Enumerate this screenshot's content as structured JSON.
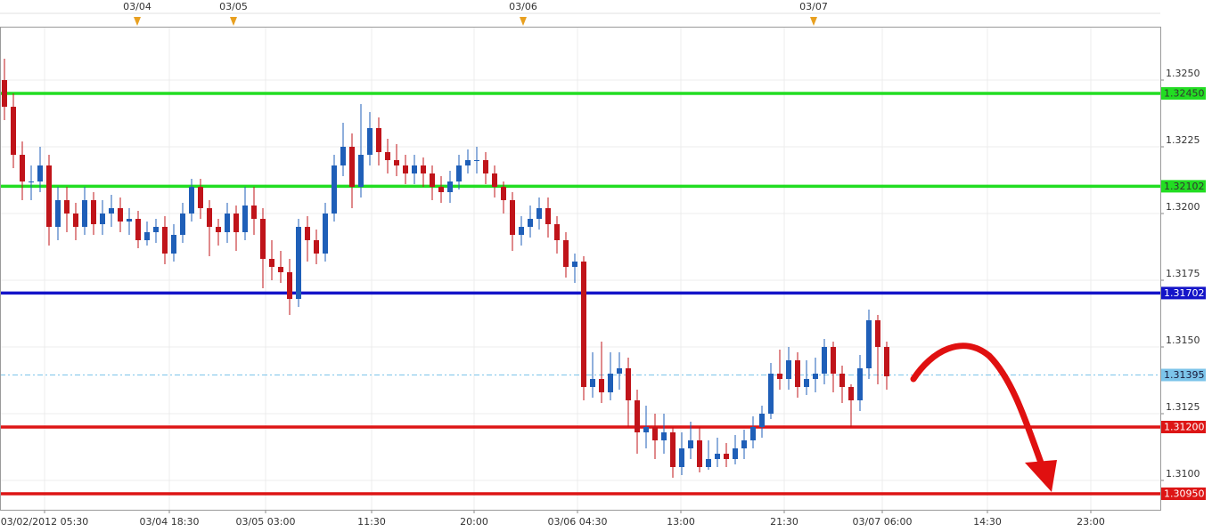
{
  "chart_data": {
    "type": "candlestick",
    "up_color": "#1f5fb8",
    "down_color": "#c0141a",
    "xlim": [
      -0.5,
      129.7
    ],
    "ylim": [
      1.3089,
      1.327
    ],
    "grid": true,
    "yticks": [
      {
        "value": 1.31,
        "label": "1.3100"
      },
      1.3125,
      {
        "value": 1.315,
        "label": "1.3150"
      },
      1.3175,
      {
        "value": 1.32,
        "label": "1.3200"
      },
      1.3225,
      {
        "value": 1.325,
        "label": "1.3250"
      }
    ],
    "xticks": [
      {
        "value": 4.5,
        "label": "03/02/2012 05:30"
      },
      {
        "value": 18.5,
        "label": "03/04 18:30"
      },
      {
        "value": 29.3,
        "label": "03/05 03:00"
      },
      {
        "value": 41.2,
        "label": "11:30"
      },
      {
        "value": 52.7,
        "label": "20:00"
      },
      {
        "value": 64.3,
        "label": "03/06 04:30"
      },
      {
        "value": 75.9,
        "label": "13:00"
      },
      {
        "value": 87.5,
        "label": "21:30"
      },
      {
        "value": 98.5,
        "label": "03/07 06:00"
      },
      {
        "value": 110.3,
        "label": "14:30"
      },
      {
        "value": 121.9,
        "label": "23:00"
      }
    ],
    "day_markers": [
      {
        "value": 14.9,
        "label": "03/04"
      },
      {
        "value": 25.7,
        "label": "03/05"
      },
      {
        "value": 58.2,
        "label": "03/06"
      },
      {
        "value": 90.8,
        "label": "03/07"
      }
    ],
    "levels": [
      {
        "value": 1.3245,
        "label": "1.32450",
        "color": "#22dd22",
        "text_color": "#333333",
        "dashed": false
      },
      {
        "value": 1.32102,
        "label": "1.32102",
        "color": "#22dd22",
        "text_color": "#333333",
        "dashed": false
      },
      {
        "value": 1.31702,
        "label": "1.31702",
        "color": "#1414c8",
        "text_color": "#ffffff",
        "dashed": false
      },
      {
        "value": 1.31395,
        "label": "1.31395",
        "color": "#7cc4ea",
        "text_color": "#1a1a3a",
        "dashed": true
      },
      {
        "value": 1.312,
        "label": "1.31200",
        "color": "#dd1515",
        "text_color": "#ffffff",
        "dashed": false
      },
      {
        "value": 1.3095,
        "label": "1.30950",
        "color": "#dd1515",
        "text_color": "#ffffff",
        "dashed": false
      }
    ],
    "open": [
      1.325,
      1.324,
      1.3222,
      1.3212,
      1.3212,
      1.3218,
      1.3195,
      1.3205,
      1.32,
      1.3195,
      1.3205,
      1.3196,
      1.32,
      1.3202,
      1.3197,
      1.3198,
      1.319,
      1.3193,
      1.3195,
      1.3185,
      1.3192,
      1.32,
      1.321,
      1.3202,
      1.3195,
      1.3193,
      1.32,
      1.3193,
      1.3203,
      1.3198,
      1.3183,
      1.318,
      1.3178,
      1.3168,
      1.3195,
      1.319,
      1.3185,
      1.32,
      1.3218,
      1.3225,
      1.321,
      1.3222,
      1.3232,
      1.3223,
      1.322,
      1.3218,
      1.3215,
      1.3218,
      1.3215,
      1.321,
      1.3208,
      1.3212,
      1.3218,
      1.322,
      1.322,
      1.3215,
      1.321,
      1.3205,
      1.3192,
      1.3195,
      1.3198,
      1.3202,
      1.3196,
      1.319,
      1.318,
      1.3182,
      1.3135,
      1.3138,
      1.3133,
      1.314,
      1.3142,
      1.313,
      1.3118,
      1.312,
      1.3115,
      1.3118,
      1.3105,
      1.3112,
      1.3115,
      1.3105,
      1.3108,
      1.311,
      1.3108,
      1.3112,
      1.3115,
      1.312,
      1.3125,
      1.314,
      1.3138,
      1.3145,
      1.3135,
      1.3138,
      1.314,
      1.315,
      1.314,
      1.3135,
      1.313,
      1.3142,
      1.316,
      1.315
    ],
    "high": [
      1.3258,
      1.3245,
      1.3227,
      1.3218,
      1.3225,
      1.3222,
      1.321,
      1.321,
      1.3204,
      1.321,
      1.3208,
      1.3205,
      1.3207,
      1.3206,
      1.3202,
      1.3201,
      1.3197,
      1.3198,
      1.3199,
      1.3196,
      1.3204,
      1.3213,
      1.3213,
      1.3205,
      1.3198,
      1.3204,
      1.3203,
      1.321,
      1.321,
      1.3202,
      1.319,
      1.3186,
      1.3183,
      1.3198,
      1.3199,
      1.3194,
      1.3204,
      1.3222,
      1.3234,
      1.323,
      1.3241,
      1.3238,
      1.3236,
      1.3228,
      1.3226,
      1.3222,
      1.3222,
      1.3221,
      1.3218,
      1.3214,
      1.3216,
      1.3222,
      1.3224,
      1.3225,
      1.3223,
      1.3218,
      1.3212,
      1.3208,
      1.3199,
      1.3203,
      1.3206,
      1.3206,
      1.3199,
      1.3193,
      1.3185,
      1.3184,
      1.3148,
      1.3152,
      1.3148,
      1.3148,
      1.3146,
      1.3134,
      1.3128,
      1.3125,
      1.3125,
      1.312,
      1.3118,
      1.3122,
      1.312,
      1.3115,
      1.3116,
      1.3114,
      1.3117,
      1.3119,
      1.3124,
      1.3128,
      1.3144,
      1.3149,
      1.315,
      1.3148,
      1.3145,
      1.3146,
      1.3153,
      1.3152,
      1.3143,
      1.3136,
      1.3147,
      1.3164,
      1.3162,
      1.3152
    ],
    "low": [
      1.3235,
      1.3217,
      1.3205,
      1.3205,
      1.3208,
      1.3188,
      1.319,
      1.3193,
      1.319,
      1.3192,
      1.3192,
      1.3192,
      1.3195,
      1.3193,
      1.3192,
      1.3187,
      1.3188,
      1.3189,
      1.3181,
      1.3182,
      1.3189,
      1.3197,
      1.3198,
      1.3184,
      1.3188,
      1.3189,
      1.3186,
      1.319,
      1.3192,
      1.3172,
      1.3175,
      1.3174,
      1.3162,
      1.3165,
      1.3182,
      1.3181,
      1.3182,
      1.3197,
      1.3214,
      1.3202,
      1.3206,
      1.3218,
      1.3218,
      1.3215,
      1.3214,
      1.3211,
      1.3211,
      1.321,
      1.3205,
      1.3204,
      1.3204,
      1.3209,
      1.3215,
      1.3215,
      1.3211,
      1.3206,
      1.32,
      1.3186,
      1.3188,
      1.3191,
      1.3194,
      1.3191,
      1.3185,
      1.3176,
      1.3174,
      1.313,
      1.3131,
      1.3129,
      1.313,
      1.3134,
      1.312,
      1.311,
      1.3112,
      1.3108,
      1.311,
      1.3101,
      1.3102,
      1.3108,
      1.3103,
      1.3104,
      1.3105,
      1.3105,
      1.3106,
      1.3108,
      1.3112,
      1.3116,
      1.3123,
      1.3134,
      1.3134,
      1.3131,
      1.3132,
      1.3133,
      1.3136,
      1.3133,
      1.3129,
      1.312,
      1.3126,
      1.3138,
      1.3136,
      1.3134
    ],
    "close": [
      1.324,
      1.3222,
      1.3212,
      1.3212,
      1.3218,
      1.3195,
      1.3205,
      1.32,
      1.3195,
      1.3205,
      1.3196,
      1.32,
      1.3202,
      1.3197,
      1.3198,
      1.319,
      1.3193,
      1.3195,
      1.3185,
      1.3192,
      1.32,
      1.321,
      1.3202,
      1.3195,
      1.3193,
      1.32,
      1.3193,
      1.3203,
      1.3198,
      1.3183,
      1.318,
      1.3178,
      1.3168,
      1.3195,
      1.319,
      1.3185,
      1.32,
      1.3218,
      1.3225,
      1.321,
      1.3222,
      1.3232,
      1.3223,
      1.322,
      1.3218,
      1.3215,
      1.3218,
      1.3215,
      1.321,
      1.3208,
      1.3212,
      1.3218,
      1.322,
      1.322,
      1.3215,
      1.321,
      1.3205,
      1.3192,
      1.3195,
      1.3198,
      1.3202,
      1.3196,
      1.319,
      1.318,
      1.3182,
      1.3135,
      1.3138,
      1.3133,
      1.314,
      1.3142,
      1.313,
      1.3118,
      1.312,
      1.3115,
      1.3118,
      1.3105,
      1.3112,
      1.3115,
      1.3105,
      1.3108,
      1.311,
      1.3108,
      1.3112,
      1.3115,
      1.312,
      1.3125,
      1.314,
      1.3138,
      1.3145,
      1.3135,
      1.3138,
      1.314,
      1.315,
      1.314,
      1.3135,
      1.313,
      1.3142,
      1.316,
      1.315,
      1.3139
    ]
  }
}
